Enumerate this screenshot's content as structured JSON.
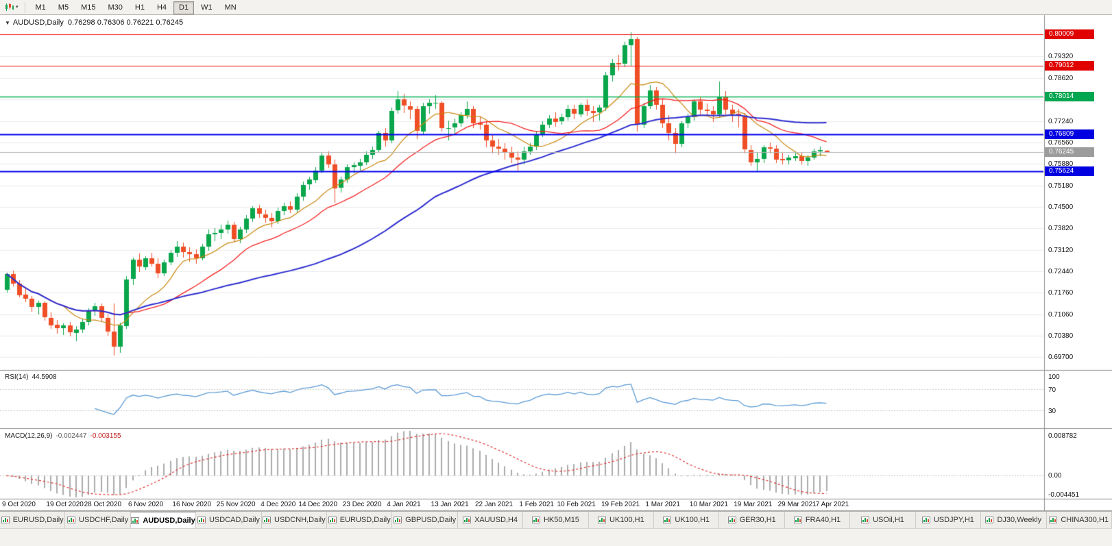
{
  "toolbar": {
    "timeframes": [
      "M1",
      "M5",
      "M15",
      "M30",
      "H1",
      "H4",
      "D1",
      "W1",
      "MN"
    ],
    "active_timeframe": "D1"
  },
  "chart": {
    "title_symbol": "AUDUSD,Daily",
    "title_ohlc": "0.76298 0.76306 0.76221 0.76245"
  },
  "indicators": {
    "rsi": {
      "label": "RSI(14)",
      "value": "44.5908"
    },
    "macd": {
      "label": "MACD(12,26,9)",
      "value_main": "-0.002447",
      "value_signal": "-0.003155",
      "axis": [
        "0.008782",
        "0.00",
        "-0.004451"
      ]
    }
  },
  "price_axis": {
    "labels": [
      "0.79320",
      "0.78620",
      "0.77940",
      "0.77240",
      "0.76560",
      "0.75880",
      "0.75180",
      "0.74500",
      "0.73820",
      "0.73120",
      "0.72440",
      "0.71760",
      "0.71060",
      "0.70380",
      "0.69700"
    ],
    "level_boxes": [
      {
        "value": "0.80009",
        "price": 0.80009,
        "color": "#e00000"
      },
      {
        "value": "0.79012",
        "price": 0.79012,
        "color": "#e00000"
      },
      {
        "value": "0.78014",
        "price": 0.78014,
        "color": "#00a650"
      },
      {
        "value": "0.76809",
        "price": 0.76809,
        "color": "#0000e0"
      },
      {
        "value": "0.76245",
        "price": 0.76245,
        "color": "#9c9c9c"
      },
      {
        "value": "0.75624",
        "price": 0.75624,
        "color": "#0000e0"
      }
    ]
  },
  "time_axis": {
    "labels": [
      {
        "text": "9 Oct 2020",
        "i": 0
      },
      {
        "text": "19 Oct 2020",
        "i": 7
      },
      {
        "text": "28 Oct 2020",
        "i": 13
      },
      {
        "text": "6 Nov 2020",
        "i": 20
      },
      {
        "text": "16 Nov 2020",
        "i": 27
      },
      {
        "text": "25 Nov 2020",
        "i": 34
      },
      {
        "text": "4 Dec 2020",
        "i": 41
      },
      {
        "text": "14 Dec 2020",
        "i": 47
      },
      {
        "text": "23 Dec 2020",
        "i": 54
      },
      {
        "text": "4 Jan 2021",
        "i": 61
      },
      {
        "text": "13 Jan 2021",
        "i": 68
      },
      {
        "text": "22 Jan 2021",
        "i": 75
      },
      {
        "text": "1 Feb 2021",
        "i": 82
      },
      {
        "text": "10 Feb 2021",
        "i": 88
      },
      {
        "text": "19 Feb 2021",
        "i": 95
      },
      {
        "text": "1 Mar 2021",
        "i": 102
      },
      {
        "text": "10 Mar 2021",
        "i": 109
      },
      {
        "text": "19 Mar 2021",
        "i": 116
      },
      {
        "text": "29 Mar 2021",
        "i": 123
      },
      {
        "text": "7 Apr 2021",
        "i": 129
      }
    ]
  },
  "tabs": [
    {
      "label": "EURUSD,Daily"
    },
    {
      "label": "USDCHF,Daily"
    },
    {
      "label": "AUDUSD,Daily",
      "active": true
    },
    {
      "label": "USDCAD,Daily"
    },
    {
      "label": "USDCNH,Daily"
    },
    {
      "label": "EURUSD,Daily"
    },
    {
      "label": "GBPUSD,Daily"
    },
    {
      "label": "XAUUSD,H4"
    },
    {
      "label": "HK50,M15"
    },
    {
      "label": "UK100,H1"
    },
    {
      "label": "UK100,H1"
    },
    {
      "label": "GER30,H1"
    },
    {
      "label": "FRA40,H1"
    },
    {
      "label": "USOil,H1"
    },
    {
      "label": "USDJPY,H1"
    },
    {
      "label": "DJ30,Weekly"
    },
    {
      "label": "CHINA300,H1"
    }
  ],
  "colors": {
    "bull": "#0aa64b",
    "bear": "#ef4e26",
    "grid": "#ececec",
    "rsi": "#5b9bd5",
    "macd_hist": "#ababab",
    "macd_signal": "#e02e2e"
  },
  "chart_data": {
    "type": "candlestick",
    "symbol": "AUDUSD",
    "timeframe": "Daily",
    "price_range": {
      "top": 0.8058,
      "bottom": 0.6928
    },
    "current_price": 0.76245,
    "hlines": [
      {
        "price": 0.80009,
        "color": "#f01414",
        "width": 1.2
      },
      {
        "price": 0.79012,
        "color": "#f01414",
        "width": 1.2
      },
      {
        "price": 0.78014,
        "color": "#00b050",
        "width": 1.6
      },
      {
        "price": 0.76809,
        "color": "#0000f0",
        "width": 2
      },
      {
        "price": 0.75624,
        "color": "#0000f0",
        "width": 2
      },
      {
        "price": 0.76245,
        "color": "#b4b4b4",
        "width": 1
      }
    ],
    "moving_averages": [
      {
        "period": 10,
        "color": "#c8860b",
        "width": 1.2
      },
      {
        "period": 20,
        "color": "#f52020",
        "width": 1.3
      },
      {
        "period": 50,
        "color": "#2d2dd0",
        "width": 2
      }
    ],
    "rsi": {
      "period": 14,
      "levels": [
        100,
        70,
        30
      ]
    },
    "macd": {
      "fast": 12,
      "slow": 26,
      "signal_period": 9
    },
    "ohlc": [
      [
        0.7185,
        0.724,
        0.7175,
        0.7235
      ],
      [
        0.7235,
        0.7245,
        0.7195,
        0.7205
      ],
      [
        0.7205,
        0.7215,
        0.716,
        0.7168
      ],
      [
        0.7168,
        0.719,
        0.7145,
        0.7155
      ],
      [
        0.7155,
        0.7165,
        0.7115,
        0.7128
      ],
      [
        0.7128,
        0.715,
        0.7105,
        0.7142
      ],
      [
        0.7142,
        0.7148,
        0.7085,
        0.7095
      ],
      [
        0.7095,
        0.7112,
        0.706,
        0.7072
      ],
      [
        0.7072,
        0.7088,
        0.7045,
        0.7062
      ],
      [
        0.7062,
        0.7078,
        0.704,
        0.707
      ],
      [
        0.707,
        0.7082,
        0.7035,
        0.7048
      ],
      [
        0.7048,
        0.7068,
        0.702,
        0.7058
      ],
      [
        0.7058,
        0.7092,
        0.7046,
        0.7082
      ],
      [
        0.7082,
        0.7126,
        0.707,
        0.7116
      ],
      [
        0.7116,
        0.7142,
        0.71,
        0.7132
      ],
      [
        0.7132,
        0.714,
        0.7082,
        0.7094
      ],
      [
        0.7094,
        0.7106,
        0.7038,
        0.705
      ],
      [
        0.705,
        0.714,
        0.6975,
        0.7002
      ],
      [
        0.7002,
        0.708,
        0.6982,
        0.707
      ],
      [
        0.707,
        0.7228,
        0.706,
        0.7218
      ],
      [
        0.7218,
        0.7288,
        0.72,
        0.728
      ],
      [
        0.728,
        0.73,
        0.7242,
        0.7258
      ],
      [
        0.7258,
        0.7292,
        0.7248,
        0.7286
      ],
      [
        0.7286,
        0.7302,
        0.7258,
        0.7268
      ],
      [
        0.7268,
        0.7284,
        0.7222,
        0.7238
      ],
      [
        0.7238,
        0.728,
        0.7228,
        0.7272
      ],
      [
        0.7272,
        0.7312,
        0.7262,
        0.7302
      ],
      [
        0.7302,
        0.734,
        0.729,
        0.7322
      ],
      [
        0.7322,
        0.7336,
        0.7288,
        0.7304
      ],
      [
        0.7304,
        0.732,
        0.7274,
        0.7298
      ],
      [
        0.7298,
        0.7314,
        0.7268,
        0.7284
      ],
      [
        0.7284,
        0.7332,
        0.7278,
        0.7322
      ],
      [
        0.7322,
        0.7376,
        0.731,
        0.7362
      ],
      [
        0.7362,
        0.7382,
        0.734,
        0.7366
      ],
      [
        0.7366,
        0.7392,
        0.7346,
        0.7376
      ],
      [
        0.7376,
        0.7406,
        0.7364,
        0.7392
      ],
      [
        0.7392,
        0.74,
        0.7338,
        0.7346
      ],
      [
        0.7346,
        0.7386,
        0.7334,
        0.7376
      ],
      [
        0.7376,
        0.7422,
        0.7366,
        0.7412
      ],
      [
        0.7412,
        0.7452,
        0.74,
        0.7444
      ],
      [
        0.7444,
        0.7456,
        0.7414,
        0.7426
      ],
      [
        0.7426,
        0.744,
        0.7398,
        0.7414
      ],
      [
        0.7414,
        0.743,
        0.7384,
        0.7404
      ],
      [
        0.7404,
        0.7446,
        0.7394,
        0.7436
      ],
      [
        0.7436,
        0.7462,
        0.7424,
        0.7452
      ],
      [
        0.7452,
        0.7466,
        0.743,
        0.744
      ],
      [
        0.744,
        0.7492,
        0.7432,
        0.7482
      ],
      [
        0.7482,
        0.753,
        0.747,
        0.752
      ],
      [
        0.752,
        0.7546,
        0.7504,
        0.7536
      ],
      [
        0.7536,
        0.7576,
        0.7526,
        0.7566
      ],
      [
        0.7566,
        0.7624,
        0.7556,
        0.7614
      ],
      [
        0.7614,
        0.7626,
        0.7574,
        0.7586
      ],
      [
        0.7586,
        0.76,
        0.7462,
        0.751
      ],
      [
        0.751,
        0.7546,
        0.7496,
        0.7536
      ],
      [
        0.7536,
        0.7586,
        0.7526,
        0.7576
      ],
      [
        0.7576,
        0.7592,
        0.7556,
        0.7582
      ],
      [
        0.7582,
        0.7602,
        0.7566,
        0.7592
      ],
      [
        0.7592,
        0.7626,
        0.7582,
        0.7616
      ],
      [
        0.7616,
        0.7642,
        0.7602,
        0.7632
      ],
      [
        0.7632,
        0.7692,
        0.7622,
        0.7686
      ],
      [
        0.7686,
        0.7702,
        0.7642,
        0.7662
      ],
      [
        0.7662,
        0.7766,
        0.7652,
        0.7756
      ],
      [
        0.7756,
        0.782,
        0.7746,
        0.7792
      ],
      [
        0.7792,
        0.781,
        0.775,
        0.7772
      ],
      [
        0.7772,
        0.7786,
        0.773,
        0.7762
      ],
      [
        0.7762,
        0.7772,
        0.7666,
        0.7692
      ],
      [
        0.7692,
        0.7782,
        0.7682,
        0.7772
      ],
      [
        0.7772,
        0.7792,
        0.7746,
        0.7782
      ],
      [
        0.7782,
        0.7806,
        0.7762,
        0.7782
      ],
      [
        0.7782,
        0.7786,
        0.769,
        0.7702
      ],
      [
        0.7702,
        0.7726,
        0.7662,
        0.7702
      ],
      [
        0.7702,
        0.7732,
        0.7682,
        0.7716
      ],
      [
        0.7716,
        0.7752,
        0.7706,
        0.7742
      ],
      [
        0.7742,
        0.7786,
        0.7732,
        0.7762
      ],
      [
        0.7762,
        0.7772,
        0.77,
        0.7716
      ],
      [
        0.7716,
        0.7736,
        0.7696,
        0.7712
      ],
      [
        0.7712,
        0.7722,
        0.764,
        0.7662
      ],
      [
        0.7662,
        0.7682,
        0.762,
        0.7642
      ],
      [
        0.7642,
        0.7666,
        0.7616,
        0.7636
      ],
      [
        0.7636,
        0.7652,
        0.76,
        0.7622
      ],
      [
        0.7622,
        0.7642,
        0.759,
        0.7606
      ],
      [
        0.7606,
        0.7626,
        0.7565,
        0.76
      ],
      [
        0.76,
        0.7642,
        0.7586,
        0.7626
      ],
      [
        0.7626,
        0.7652,
        0.7616,
        0.7642
      ],
      [
        0.7642,
        0.7692,
        0.7632,
        0.7682
      ],
      [
        0.7682,
        0.7722,
        0.7672,
        0.7712
      ],
      [
        0.7712,
        0.7742,
        0.7702,
        0.7732
      ],
      [
        0.7732,
        0.7752,
        0.7706,
        0.7722
      ],
      [
        0.7722,
        0.7746,
        0.7712,
        0.7736
      ],
      [
        0.7736,
        0.7776,
        0.7726,
        0.7762
      ],
      [
        0.7762,
        0.7776,
        0.773,
        0.7746
      ],
      [
        0.7746,
        0.7782,
        0.7736,
        0.7776
      ],
      [
        0.7776,
        0.7792,
        0.774,
        0.7756
      ],
      [
        0.7756,
        0.7772,
        0.772,
        0.775
      ],
      [
        0.775,
        0.7776,
        0.7726,
        0.7766
      ],
      [
        0.7766,
        0.788,
        0.7756,
        0.787
      ],
      [
        0.787,
        0.7922,
        0.785,
        0.791
      ],
      [
        0.791,
        0.7936,
        0.7886,
        0.7906
      ],
      [
        0.7906,
        0.7976,
        0.7896,
        0.7966
      ],
      [
        0.7966,
        0.8007,
        0.79,
        0.7986
      ],
      [
        0.7986,
        0.7992,
        0.769,
        0.7712
      ],
      [
        0.7712,
        0.7782,
        0.7702,
        0.7772
      ],
      [
        0.7772,
        0.784,
        0.7762,
        0.7822
      ],
      [
        0.7822,
        0.7832,
        0.776,
        0.7776
      ],
      [
        0.7776,
        0.7792,
        0.77,
        0.7716
      ],
      [
        0.7716,
        0.7742,
        0.7662,
        0.7686
      ],
      [
        0.7686,
        0.7702,
        0.762,
        0.765
      ],
      [
        0.765,
        0.7722,
        0.764,
        0.7716
      ],
      [
        0.7716,
        0.7746,
        0.77,
        0.7736
      ],
      [
        0.7736,
        0.7792,
        0.7726,
        0.7786
      ],
      [
        0.7786,
        0.78,
        0.7744,
        0.776
      ],
      [
        0.776,
        0.778,
        0.774,
        0.7756
      ],
      [
        0.7756,
        0.7772,
        0.772,
        0.7746
      ],
      [
        0.7746,
        0.785,
        0.7736,
        0.78
      ],
      [
        0.78,
        0.782,
        0.7744,
        0.776
      ],
      [
        0.776,
        0.7776,
        0.772,
        0.7746
      ],
      [
        0.7746,
        0.7762,
        0.7704,
        0.774
      ],
      [
        0.774,
        0.775,
        0.762,
        0.7632
      ],
      [
        0.7632,
        0.7646,
        0.758,
        0.7592
      ],
      [
        0.7592,
        0.7625,
        0.7562,
        0.7602
      ],
      [
        0.7602,
        0.7646,
        0.759,
        0.764
      ],
      [
        0.764,
        0.7656,
        0.762,
        0.7636
      ],
      [
        0.7636,
        0.7646,
        0.759,
        0.7602
      ],
      [
        0.7602,
        0.7622,
        0.7585,
        0.7598
      ],
      [
        0.7598,
        0.7616,
        0.7584,
        0.7606
      ],
      [
        0.7606,
        0.7626,
        0.7596,
        0.7612
      ],
      [
        0.7612,
        0.7622,
        0.7585,
        0.7596
      ],
      [
        0.7596,
        0.7616,
        0.758,
        0.7606
      ],
      [
        0.7606,
        0.7636,
        0.76,
        0.7626
      ],
      [
        0.7626,
        0.7642,
        0.7612,
        0.763
      ],
      [
        0.76298,
        0.76306,
        0.76221,
        0.76245
      ]
    ]
  }
}
